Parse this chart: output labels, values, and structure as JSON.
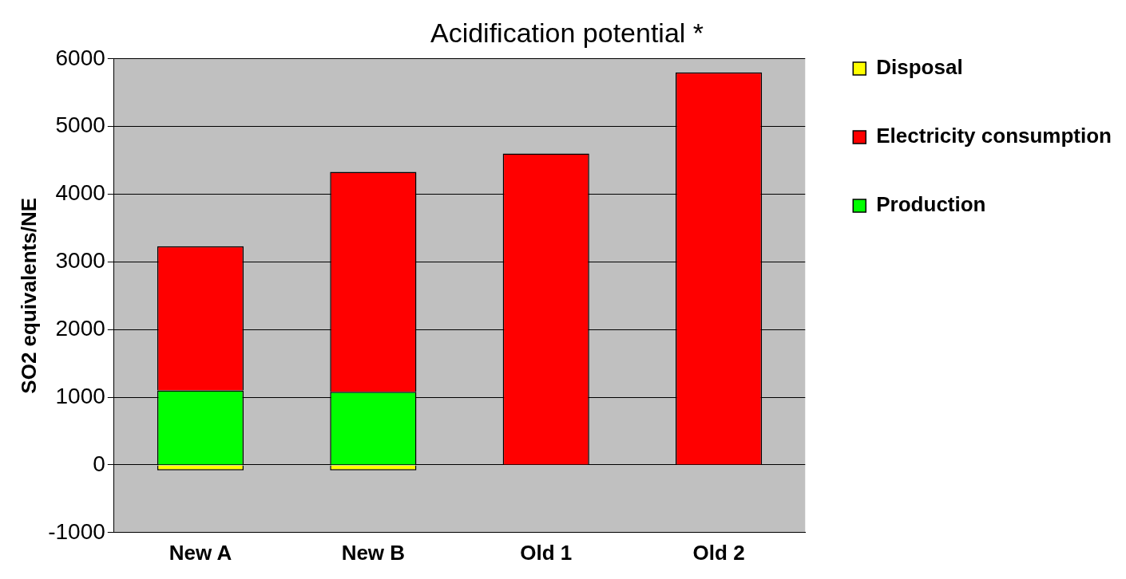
{
  "chart_data": {
    "type": "bar",
    "title": "Acidification potential *",
    "ylabel": "SO2 equivalents/NE",
    "categories": [
      "New A",
      "New B",
      "Old 1",
      "Old 2"
    ],
    "series": [
      {
        "name": "Production",
        "color": "#00ff00",
        "values": [
          1100,
          1080,
          null,
          null
        ]
      },
      {
        "name": "Electricity consumption",
        "color": "#ff0000",
        "values": [
          2130,
          3250,
          4600,
          5800
        ]
      },
      {
        "name": "Disposal",
        "color": "#ffff00",
        "values": [
          -80,
          -80,
          null,
          null
        ]
      }
    ],
    "stacked": true,
    "ylim": [
      -1000,
      6000
    ],
    "yticks": [
      -1000,
      0,
      1000,
      2000,
      3000,
      4000,
      5000,
      6000
    ],
    "grid": "y",
    "legend": "right"
  }
}
